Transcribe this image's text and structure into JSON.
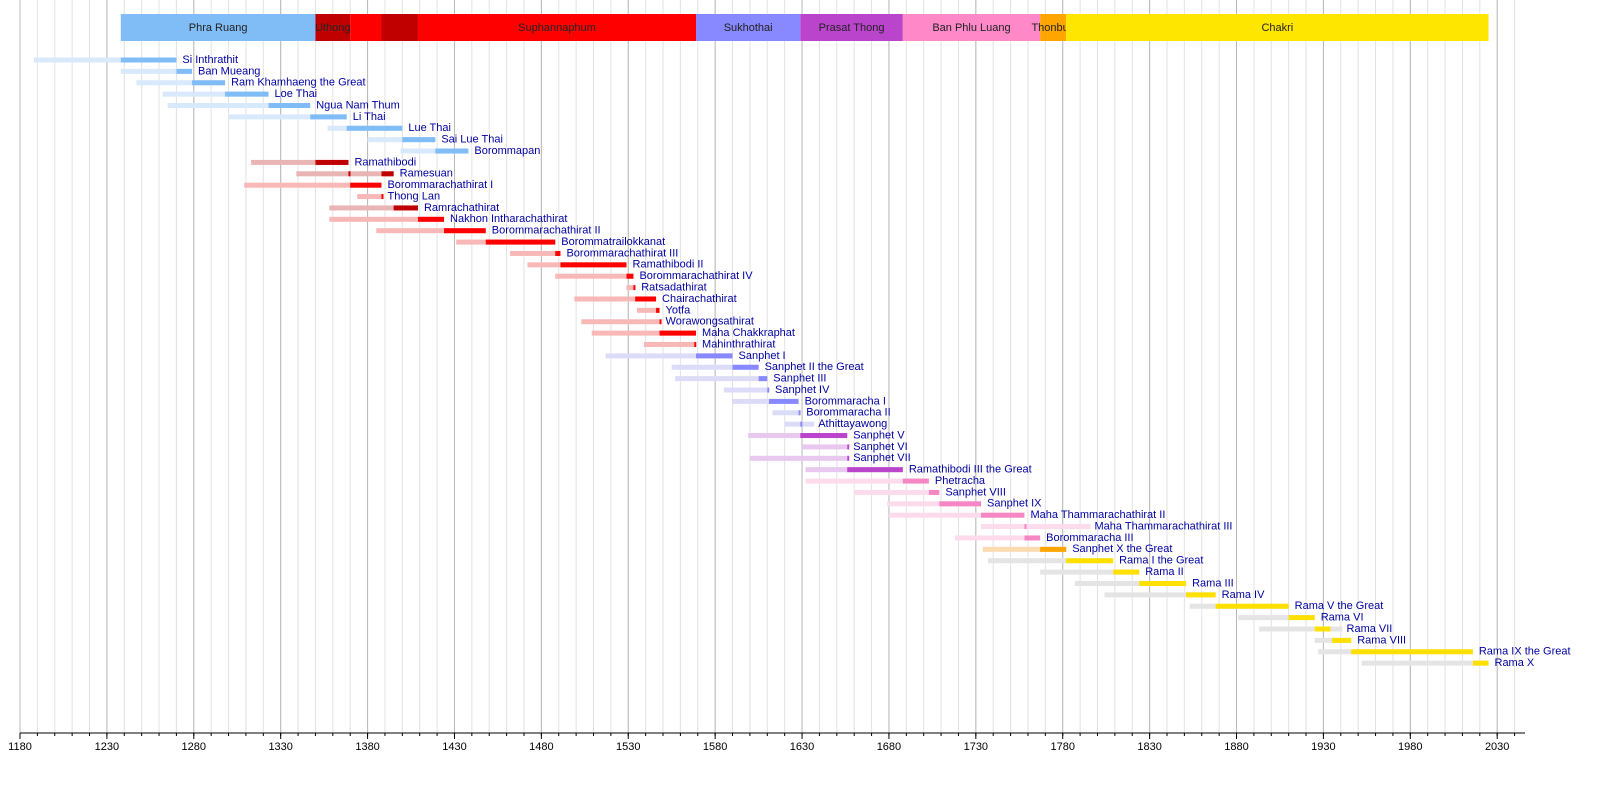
{
  "chart_data": {
    "type": "timeline",
    "xlim": [
      1180,
      2046
    ],
    "xticks": [
      1180,
      1230,
      1280,
      1330,
      1380,
      1430,
      1480,
      1530,
      1580,
      1630,
      1680,
      1730,
      1780,
      1830,
      1880,
      1930,
      1980,
      2030
    ],
    "xminor": [
      1180,
      1190,
      1200,
      1210,
      1220,
      1230,
      1240,
      1250,
      1260,
      1270,
      1280,
      1290,
      1300,
      1310,
      1320,
      1330,
      1340,
      1350,
      1360,
      1370,
      1380,
      1390,
      1400,
      1410,
      1420,
      1430,
      1440,
      1450,
      1460,
      1470,
      1480,
      1490,
      1500,
      1510,
      1520,
      1530,
      1540,
      1550,
      1560,
      1570,
      1580,
      1590,
      1600,
      1610,
      1620,
      1630,
      1640,
      1650,
      1660,
      1670,
      1680,
      1690,
      1700,
      1710,
      1720,
      1730,
      1740,
      1750,
      1760,
      1770,
      1780,
      1790,
      1800,
      1810,
      1820,
      1830,
      1840,
      1850,
      1860,
      1870,
      1880,
      1890,
      1900,
      1910,
      1920,
      1930,
      1940,
      1950,
      1960,
      1970,
      1980,
      1990,
      2000,
      2010,
      2020,
      2030,
      2040
    ],
    "grid": true,
    "dynasties": [
      {
        "name": "Phra Ruang",
        "start": 1238,
        "end": 1350,
        "color": "#80bcf5"
      },
      {
        "name": "Uthong",
        "start": 1350,
        "end": 1370,
        "color": "#c00000"
      },
      {
        "name": null,
        "start": 1370,
        "end": 1388,
        "color": "#ff0000"
      },
      {
        "name": null,
        "start": 1388,
        "end": 1409,
        "color": "#c00000"
      },
      {
        "name": "Suphannaphum",
        "start": 1409,
        "end": 1569,
        "color": "#ff0000"
      },
      {
        "name": "Sukhothai",
        "start": 1569,
        "end": 1629,
        "color": "#8888ff"
      },
      {
        "name": "Prasat Thong",
        "start": 1629,
        "end": 1688,
        "color": "#bb44cc"
      },
      {
        "name": "Ban Phlu Luang",
        "start": 1688,
        "end": 1767,
        "color": "#ff88c8"
      },
      {
        "name": "Thonburi",
        "start": 1767,
        "end": 1782,
        "color": "#ffa500"
      },
      {
        "name": "Chakri",
        "start": 1782,
        "end": 2025,
        "color": "#ffe600"
      }
    ],
    "monarchs": [
      {
        "name": "Si Inthrathit",
        "life": [
          1188,
          1270
        ],
        "reigns": [
          [
            1238,
            1270
          ]
        ],
        "color": "#80bcf5",
        "light": "#d8e9fb"
      },
      {
        "name": "Ban Mueang",
        "life": [
          1238,
          1279
        ],
        "reigns": [
          [
            1270,
            1279
          ]
        ],
        "color": "#80bcf5",
        "light": "#d8e9fb"
      },
      {
        "name": "Ram Khamhaeng the Great",
        "life": [
          1247,
          1298
        ],
        "reigns": [
          [
            1279,
            1298
          ]
        ],
        "color": "#80bcf5",
        "light": "#d8e9fb"
      },
      {
        "name": "Loe Thai",
        "life": [
          1262,
          1323
        ],
        "reigns": [
          [
            1298,
            1323
          ]
        ],
        "color": "#80bcf5",
        "light": "#d8e9fb"
      },
      {
        "name": "Ngua Nam Thum",
        "life": [
          1265,
          1347
        ],
        "reigns": [
          [
            1323,
            1347
          ]
        ],
        "color": "#80bcf5",
        "light": "#d8e9fb"
      },
      {
        "name": "Li Thai",
        "life": [
          1300,
          1368
        ],
        "reigns": [
          [
            1347,
            1368
          ]
        ],
        "color": "#80bcf5",
        "light": "#d8e9fb"
      },
      {
        "name": "Lue Thai",
        "life": [
          1357,
          1400
        ],
        "reigns": [
          [
            1368,
            1400
          ]
        ],
        "color": "#80bcf5",
        "light": "#d8e9fb"
      },
      {
        "name": "Sai Lue Thai",
        "life": [
          1380,
          1419
        ],
        "reigns": [
          [
            1400,
            1419
          ]
        ],
        "color": "#80bcf5",
        "light": "#d8e9fb"
      },
      {
        "name": "Borommapan",
        "life": [
          1399,
          1438
        ],
        "reigns": [
          [
            1419,
            1438
          ]
        ],
        "color": "#80bcf5",
        "light": "#d8e9fb"
      },
      {
        "name": "Ramathibodi",
        "life": [
          1313,
          1369
        ],
        "reigns": [
          [
            1350,
            1369
          ]
        ],
        "color": "#c00000",
        "light": "#e8b4b4"
      },
      {
        "name": "Ramesuan",
        "life": [
          1339,
          1395
        ],
        "reigns": [
          [
            1369,
            1370
          ],
          [
            1388,
            1395
          ]
        ],
        "color": "#c00000",
        "light": "#e8b4b4"
      },
      {
        "name": "Borommarachathirat I",
        "life": [
          1309,
          1388
        ],
        "reigns": [
          [
            1370,
            1388
          ]
        ],
        "color": "#ff0000",
        "light": "#f9b8b8"
      },
      {
        "name": "Thong Lan",
        "life": [
          1374,
          1388
        ],
        "reigns": [
          [
            1388,
            1388
          ]
        ],
        "color": "#ff0000",
        "light": "#f9b8b8"
      },
      {
        "name": "Ramrachathirat",
        "life": [
          1358,
          1409
        ],
        "reigns": [
          [
            1395,
            1409
          ]
        ],
        "color": "#c00000",
        "light": "#e8b4b4"
      },
      {
        "name": "Nakhon Intharachathirat",
        "life": [
          1358,
          1424
        ],
        "reigns": [
          [
            1409,
            1424
          ]
        ],
        "color": "#ff0000",
        "light": "#f9b8b8"
      },
      {
        "name": "Borommarachathirat II",
        "life": [
          1385,
          1448
        ],
        "reigns": [
          [
            1424,
            1448
          ]
        ],
        "color": "#ff0000",
        "light": "#f9b8b8"
      },
      {
        "name": "Borommatrailokkanat",
        "life": [
          1431,
          1488
        ],
        "reigns": [
          [
            1448,
            1488
          ]
        ],
        "color": "#ff0000",
        "light": "#f9b8b8"
      },
      {
        "name": "Borommarachathirat III",
        "life": [
          1462,
          1491
        ],
        "reigns": [
          [
            1488,
            1491
          ]
        ],
        "color": "#ff0000",
        "light": "#f9b8b8"
      },
      {
        "name": "Ramathibodi II",
        "life": [
          1472,
          1529
        ],
        "reigns": [
          [
            1491,
            1529
          ]
        ],
        "color": "#ff0000",
        "light": "#f9b8b8"
      },
      {
        "name": "Borommarachathirat IV",
        "life": [
          1488,
          1533
        ],
        "reigns": [
          [
            1529,
            1533
          ]
        ],
        "color": "#ff0000",
        "light": "#f9b8b8"
      },
      {
        "name": "Ratsadathirat",
        "life": [
          1529,
          1534
        ],
        "reigns": [
          [
            1533,
            1534
          ]
        ],
        "color": "#ff0000",
        "light": "#f9b8b8"
      },
      {
        "name": "Chairachathirat",
        "life": [
          1499,
          1546
        ],
        "reigns": [
          [
            1534,
            1546
          ]
        ],
        "color": "#ff0000",
        "light": "#f9b8b8"
      },
      {
        "name": "Yotfa",
        "life": [
          1535,
          1548
        ],
        "reigns": [
          [
            1546,
            1548
          ]
        ],
        "color": "#ff0000",
        "light": "#f9b8b8"
      },
      {
        "name": "Worawongsathirat",
        "life": [
          1503,
          1548
        ],
        "reigns": [
          [
            1548,
            1548
          ]
        ],
        "color": "#ff0000",
        "light": "#f9b8b8"
      },
      {
        "name": "Maha Chakkraphat",
        "life": [
          1509,
          1569
        ],
        "reigns": [
          [
            1548,
            1569
          ]
        ],
        "color": "#ff0000",
        "light": "#f9b8b8"
      },
      {
        "name": "Mahinthrathirat",
        "life": [
          1539,
          1569
        ],
        "reigns": [
          [
            1568,
            1569
          ]
        ],
        "color": "#ff0000",
        "light": "#f9b8b8"
      },
      {
        "name": "Sanphet I",
        "life": [
          1517,
          1590
        ],
        "reigns": [
          [
            1569,
            1590
          ]
        ],
        "color": "#8888ff",
        "light": "#dcdcf8"
      },
      {
        "name": "Sanphet II the Great",
        "life": [
          1555,
          1605
        ],
        "reigns": [
          [
            1590,
            1605
          ]
        ],
        "color": "#8888ff",
        "light": "#dcdcf8"
      },
      {
        "name": "Sanphet III",
        "life": [
          1557,
          1610
        ],
        "reigns": [
          [
            1605,
            1610
          ]
        ],
        "color": "#8888ff",
        "light": "#dcdcf8"
      },
      {
        "name": "Sanphet IV",
        "life": [
          1585,
          1611
        ],
        "reigns": [
          [
            1610,
            1611
          ]
        ],
        "color": "#8888ff",
        "light": "#dcdcf8"
      },
      {
        "name": "Borommaracha I",
        "life": [
          1590,
          1628
        ],
        "reigns": [
          [
            1611,
            1628
          ]
        ],
        "color": "#8888ff",
        "light": "#dcdcf8"
      },
      {
        "name": "Borommaracha II",
        "life": [
          1613,
          1629
        ],
        "reigns": [
          [
            1628,
            1629
          ]
        ],
        "color": "#8888ff",
        "light": "#dcdcf8"
      },
      {
        "name": "Athittayawong",
        "life": [
          1620,
          1637
        ],
        "reigns": [
          [
            1629,
            1629
          ]
        ],
        "color": "#8888ff",
        "light": "#dcdcf8"
      },
      {
        "name": "Sanphet V",
        "life": [
          1599,
          1656
        ],
        "reigns": [
          [
            1629,
            1656
          ]
        ],
        "color": "#bb44cc",
        "light": "#e8c8ee"
      },
      {
        "name": "Sanphet VI",
        "life": [
          1630,
          1656
        ],
        "reigns": [
          [
            1656,
            1656
          ]
        ],
        "color": "#bb44cc",
        "light": "#e8c8ee"
      },
      {
        "name": "Sanphet VII",
        "life": [
          1600,
          1656
        ],
        "reigns": [
          [
            1656,
            1656
          ]
        ],
        "color": "#bb44cc",
        "light": "#e8c8ee"
      },
      {
        "name": "Ramathibodi III the Great",
        "life": [
          1632,
          1688
        ],
        "reigns": [
          [
            1656,
            1688
          ]
        ],
        "color": "#bb44cc",
        "light": "#e8c8ee"
      },
      {
        "name": "Phetracha",
        "life": [
          1632,
          1703
        ],
        "reigns": [
          [
            1688,
            1703
          ]
        ],
        "color": "#f588c4",
        "light": "#fcdcec"
      },
      {
        "name": "Sanphet VIII",
        "life": [
          1660,
          1709
        ],
        "reigns": [
          [
            1703,
            1709
          ]
        ],
        "color": "#f588c4",
        "light": "#fcdcec"
      },
      {
        "name": "Sanphet IX",
        "life": [
          1679,
          1733
        ],
        "reigns": [
          [
            1709,
            1733
          ]
        ],
        "color": "#f588c4",
        "light": "#fcdcec"
      },
      {
        "name": "Maha Thammarachathirat II",
        "life": [
          1680,
          1758
        ],
        "reigns": [
          [
            1733,
            1758
          ]
        ],
        "color": "#f588c4",
        "light": "#fcdcec"
      },
      {
        "name": "Maha Thammarachathirat III",
        "life": [
          1733,
          1796
        ],
        "reigns": [
          [
            1758,
            1758
          ]
        ],
        "color": "#f588c4",
        "light": "#fcdcec"
      },
      {
        "name": "Borommaracha III",
        "life": [
          1718,
          1767
        ],
        "reigns": [
          [
            1758,
            1767
          ]
        ],
        "color": "#f588c4",
        "light": "#fcdcec"
      },
      {
        "name": "Sanphet X the Great",
        "life": [
          1734,
          1782
        ],
        "reigns": [
          [
            1767,
            1782
          ]
        ],
        "color": "#ffa500",
        "light": "#fbdcb0"
      },
      {
        "name": "Rama I the Great",
        "life": [
          1737,
          1809
        ],
        "reigns": [
          [
            1782,
            1809
          ]
        ],
        "color": "#ffe000",
        "light": "#e4e4e4"
      },
      {
        "name": "Rama II",
        "life": [
          1767,
          1824
        ],
        "reigns": [
          [
            1809,
            1824
          ]
        ],
        "color": "#ffe000",
        "light": "#e4e4e4"
      },
      {
        "name": "Rama III",
        "life": [
          1787,
          1851
        ],
        "reigns": [
          [
            1824,
            1851
          ]
        ],
        "color": "#ffe000",
        "light": "#e4e4e4"
      },
      {
        "name": "Rama IV",
        "life": [
          1804,
          1868
        ],
        "reigns": [
          [
            1851,
            1868
          ]
        ],
        "color": "#ffe000",
        "light": "#e4e4e4"
      },
      {
        "name": "Rama V the Great",
        "life": [
          1853,
          1910
        ],
        "reigns": [
          [
            1868,
            1910
          ]
        ],
        "color": "#ffe000",
        "light": "#e4e4e4"
      },
      {
        "name": "Rama VI",
        "life": [
          1881,
          1925
        ],
        "reigns": [
          [
            1910,
            1925
          ]
        ],
        "color": "#ffe000",
        "light": "#e4e4e4"
      },
      {
        "name": "Rama VII",
        "life": [
          1893,
          1941
        ],
        "reigns": [
          [
            1925,
            1934
          ]
        ],
        "color": "#ffe000",
        "light": "#e4e4e4"
      },
      {
        "name": "Rama VIII",
        "life": [
          1925,
          1946
        ],
        "reigns": [
          [
            1935,
            1946
          ]
        ],
        "color": "#ffe000",
        "light": "#e4e4e4"
      },
      {
        "name": "Rama IX the Great",
        "life": [
          1927,
          2016
        ],
        "reigns": [
          [
            1946,
            2016
          ]
        ],
        "color": "#ffe000",
        "light": "#e4e4e4"
      },
      {
        "name": "Rama X",
        "life": [
          1952,
          2025
        ],
        "reigns": [
          [
            2016,
            2025
          ]
        ],
        "color": "#ffe000",
        "light": "#e4e4e4"
      }
    ]
  }
}
